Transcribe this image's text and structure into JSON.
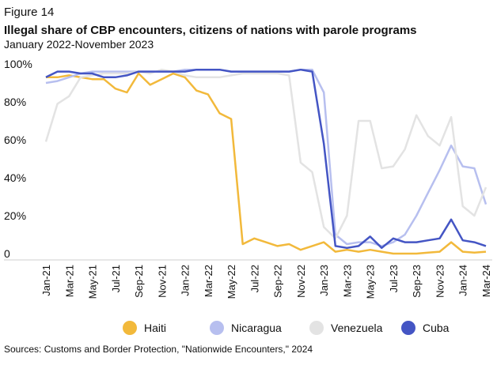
{
  "figure_label": "Figure 14",
  "chart_data": {
    "type": "line",
    "title": "Illegal share of CBP encounters, citizens of nations with parole programs",
    "subtitle": "January 2022-November 2023",
    "source": "Sources: Customs and Border Protection, \"Nationwide Encounters,\" 2024",
    "categories": [
      "Jan-21",
      null,
      "Mar-21",
      null,
      "May-21",
      null,
      "Jul-21",
      null,
      "Sep-21",
      null,
      "Nov-21",
      null,
      "Jan-22",
      null,
      "Mar-22",
      null,
      "May-22",
      null,
      "Jul-22",
      null,
      "Sep-22",
      null,
      "Nov-22",
      null,
      "Jan-23",
      null,
      "Mar-23",
      null,
      "May-23",
      null,
      "Jul-23",
      null,
      "Sep-23",
      null,
      "Nov-23",
      null,
      "Jan-24",
      null,
      "Mar-24"
    ],
    "ylim": [
      0,
      100
    ],
    "yticks": [
      0,
      {
        "value": 20,
        "label": "20%"
      },
      {
        "value": 40,
        "label": "40%"
      },
      {
        "value": 60,
        "label": "60%"
      },
      {
        "value": 80,
        "label": "80%"
      },
      {
        "value": 100,
        "label": "100%"
      }
    ],
    "grid": false,
    "legend": "bottom",
    "series": [
      {
        "name": "Haiti",
        "color": "#f2b93b",
        "values": [
          93,
          93,
          94,
          93,
          92,
          92,
          87,
          85,
          95,
          89,
          92,
          95,
          93,
          86,
          84,
          74,
          71,
          5,
          8,
          6,
          4,
          5,
          2,
          4,
          6,
          1,
          2,
          1,
          2,
          1,
          0,
          0,
          0,
          0.5,
          1,
          6,
          1,
          0.5,
          1
        ]
      },
      {
        "name": "Nicaragua",
        "color": "#b7bfef",
        "values": [
          90,
          91,
          93,
          95,
          96,
          96,
          96,
          96,
          96,
          96,
          96,
          96,
          97,
          97,
          97,
          97,
          96,
          96,
          96,
          96,
          96,
          96,
          97,
          97,
          85,
          10,
          5,
          6,
          6,
          4,
          6,
          10,
          20,
          32,
          44,
          57,
          46,
          45,
          26
        ]
      },
      {
        "name": "Venezuela",
        "color": "#e3e3e3",
        "values": [
          59,
          79,
          83,
          93,
          94,
          95,
          95,
          95,
          96,
          95,
          97,
          96,
          94,
          93,
          93,
          93,
          94,
          95,
          95,
          95,
          95,
          94,
          48,
          43,
          14,
          8,
          20,
          70,
          70,
          45,
          46,
          55,
          73,
          62,
          57,
          72,
          25,
          20,
          35
        ]
      },
      {
        "name": "Cuba",
        "color": "#4455c4",
        "values": [
          93,
          96,
          96,
          95,
          95,
          93,
          93,
          94,
          96,
          96,
          96,
          96,
          96,
          97,
          97,
          97,
          96,
          96,
          96,
          96,
          96,
          96,
          97,
          96,
          58,
          4,
          3,
          4,
          9,
          3,
          8,
          6,
          6,
          7,
          8,
          18,
          7,
          6,
          4
        ]
      }
    ]
  }
}
